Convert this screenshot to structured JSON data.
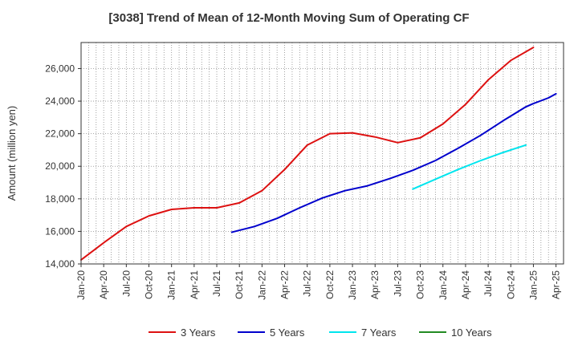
{
  "chart_data": {
    "type": "line",
    "title": "[3038]  Trend of Mean of 12-Month Moving Sum of Operating CF",
    "xlabel": "",
    "ylabel": "Amount (million yen)",
    "ylim": [
      14000,
      27600
    ],
    "yticks": [
      14000,
      16000,
      18000,
      20000,
      22000,
      24000,
      26000
    ],
    "ytick_labels": [
      "14,000",
      "16,000",
      "18,000",
      "20,000",
      "22,000",
      "24,000",
      "26,000"
    ],
    "x_tick_labels": [
      "Jan-20",
      "Apr-20",
      "Jul-20",
      "Oct-20",
      "Jan-21",
      "Apr-21",
      "Jul-21",
      "Oct-21",
      "Jan-22",
      "Apr-22",
      "Jul-22",
      "Oct-22",
      "Jan-23",
      "Apr-23",
      "Jul-23",
      "Oct-23",
      "Jan-24",
      "Apr-24",
      "Jul-24",
      "Oct-24",
      "Jan-25",
      "Apr-25"
    ],
    "x_month_count": 64,
    "grid": true,
    "legend_position": "bottom",
    "series": [
      {
        "name": "3 Years",
        "color": "#dd1111",
        "points": [
          [
            0,
            14250
          ],
          [
            3,
            15300
          ],
          [
            6,
            16300
          ],
          [
            9,
            16950
          ],
          [
            12,
            17350
          ],
          [
            15,
            17450
          ],
          [
            18,
            17450
          ],
          [
            21,
            17750
          ],
          [
            24,
            18500
          ],
          [
            27,
            19800
          ],
          [
            30,
            21300
          ],
          [
            33,
            22000
          ],
          [
            36,
            22050
          ],
          [
            39,
            21800
          ],
          [
            42,
            21450
          ],
          [
            45,
            21750
          ],
          [
            48,
            22600
          ],
          [
            51,
            23800
          ],
          [
            54,
            25300
          ],
          [
            57,
            26500
          ],
          [
            60,
            27300
          ]
        ]
      },
      {
        "name": "5 Years",
        "color": "#0000cc",
        "points": [
          [
            20,
            15950
          ],
          [
            23,
            16300
          ],
          [
            26,
            16800
          ],
          [
            29,
            17450
          ],
          [
            32,
            18050
          ],
          [
            35,
            18500
          ],
          [
            38,
            18800
          ],
          [
            41,
            19250
          ],
          [
            44,
            19750
          ],
          [
            47,
            20350
          ],
          [
            50,
            21100
          ],
          [
            53,
            21900
          ],
          [
            56,
            22800
          ],
          [
            59,
            23650
          ],
          [
            60,
            23850
          ],
          [
            62,
            24200
          ],
          [
            63,
            24450
          ]
        ]
      },
      {
        "name": "7 Years",
        "color": "#00e5ee",
        "points": [
          [
            44,
            18600
          ],
          [
            47,
            19200
          ],
          [
            50,
            19800
          ],
          [
            53,
            20350
          ],
          [
            56,
            20850
          ],
          [
            59,
            21300
          ]
        ]
      },
      {
        "name": "10 Years",
        "color": "#228b22",
        "points": []
      }
    ]
  }
}
